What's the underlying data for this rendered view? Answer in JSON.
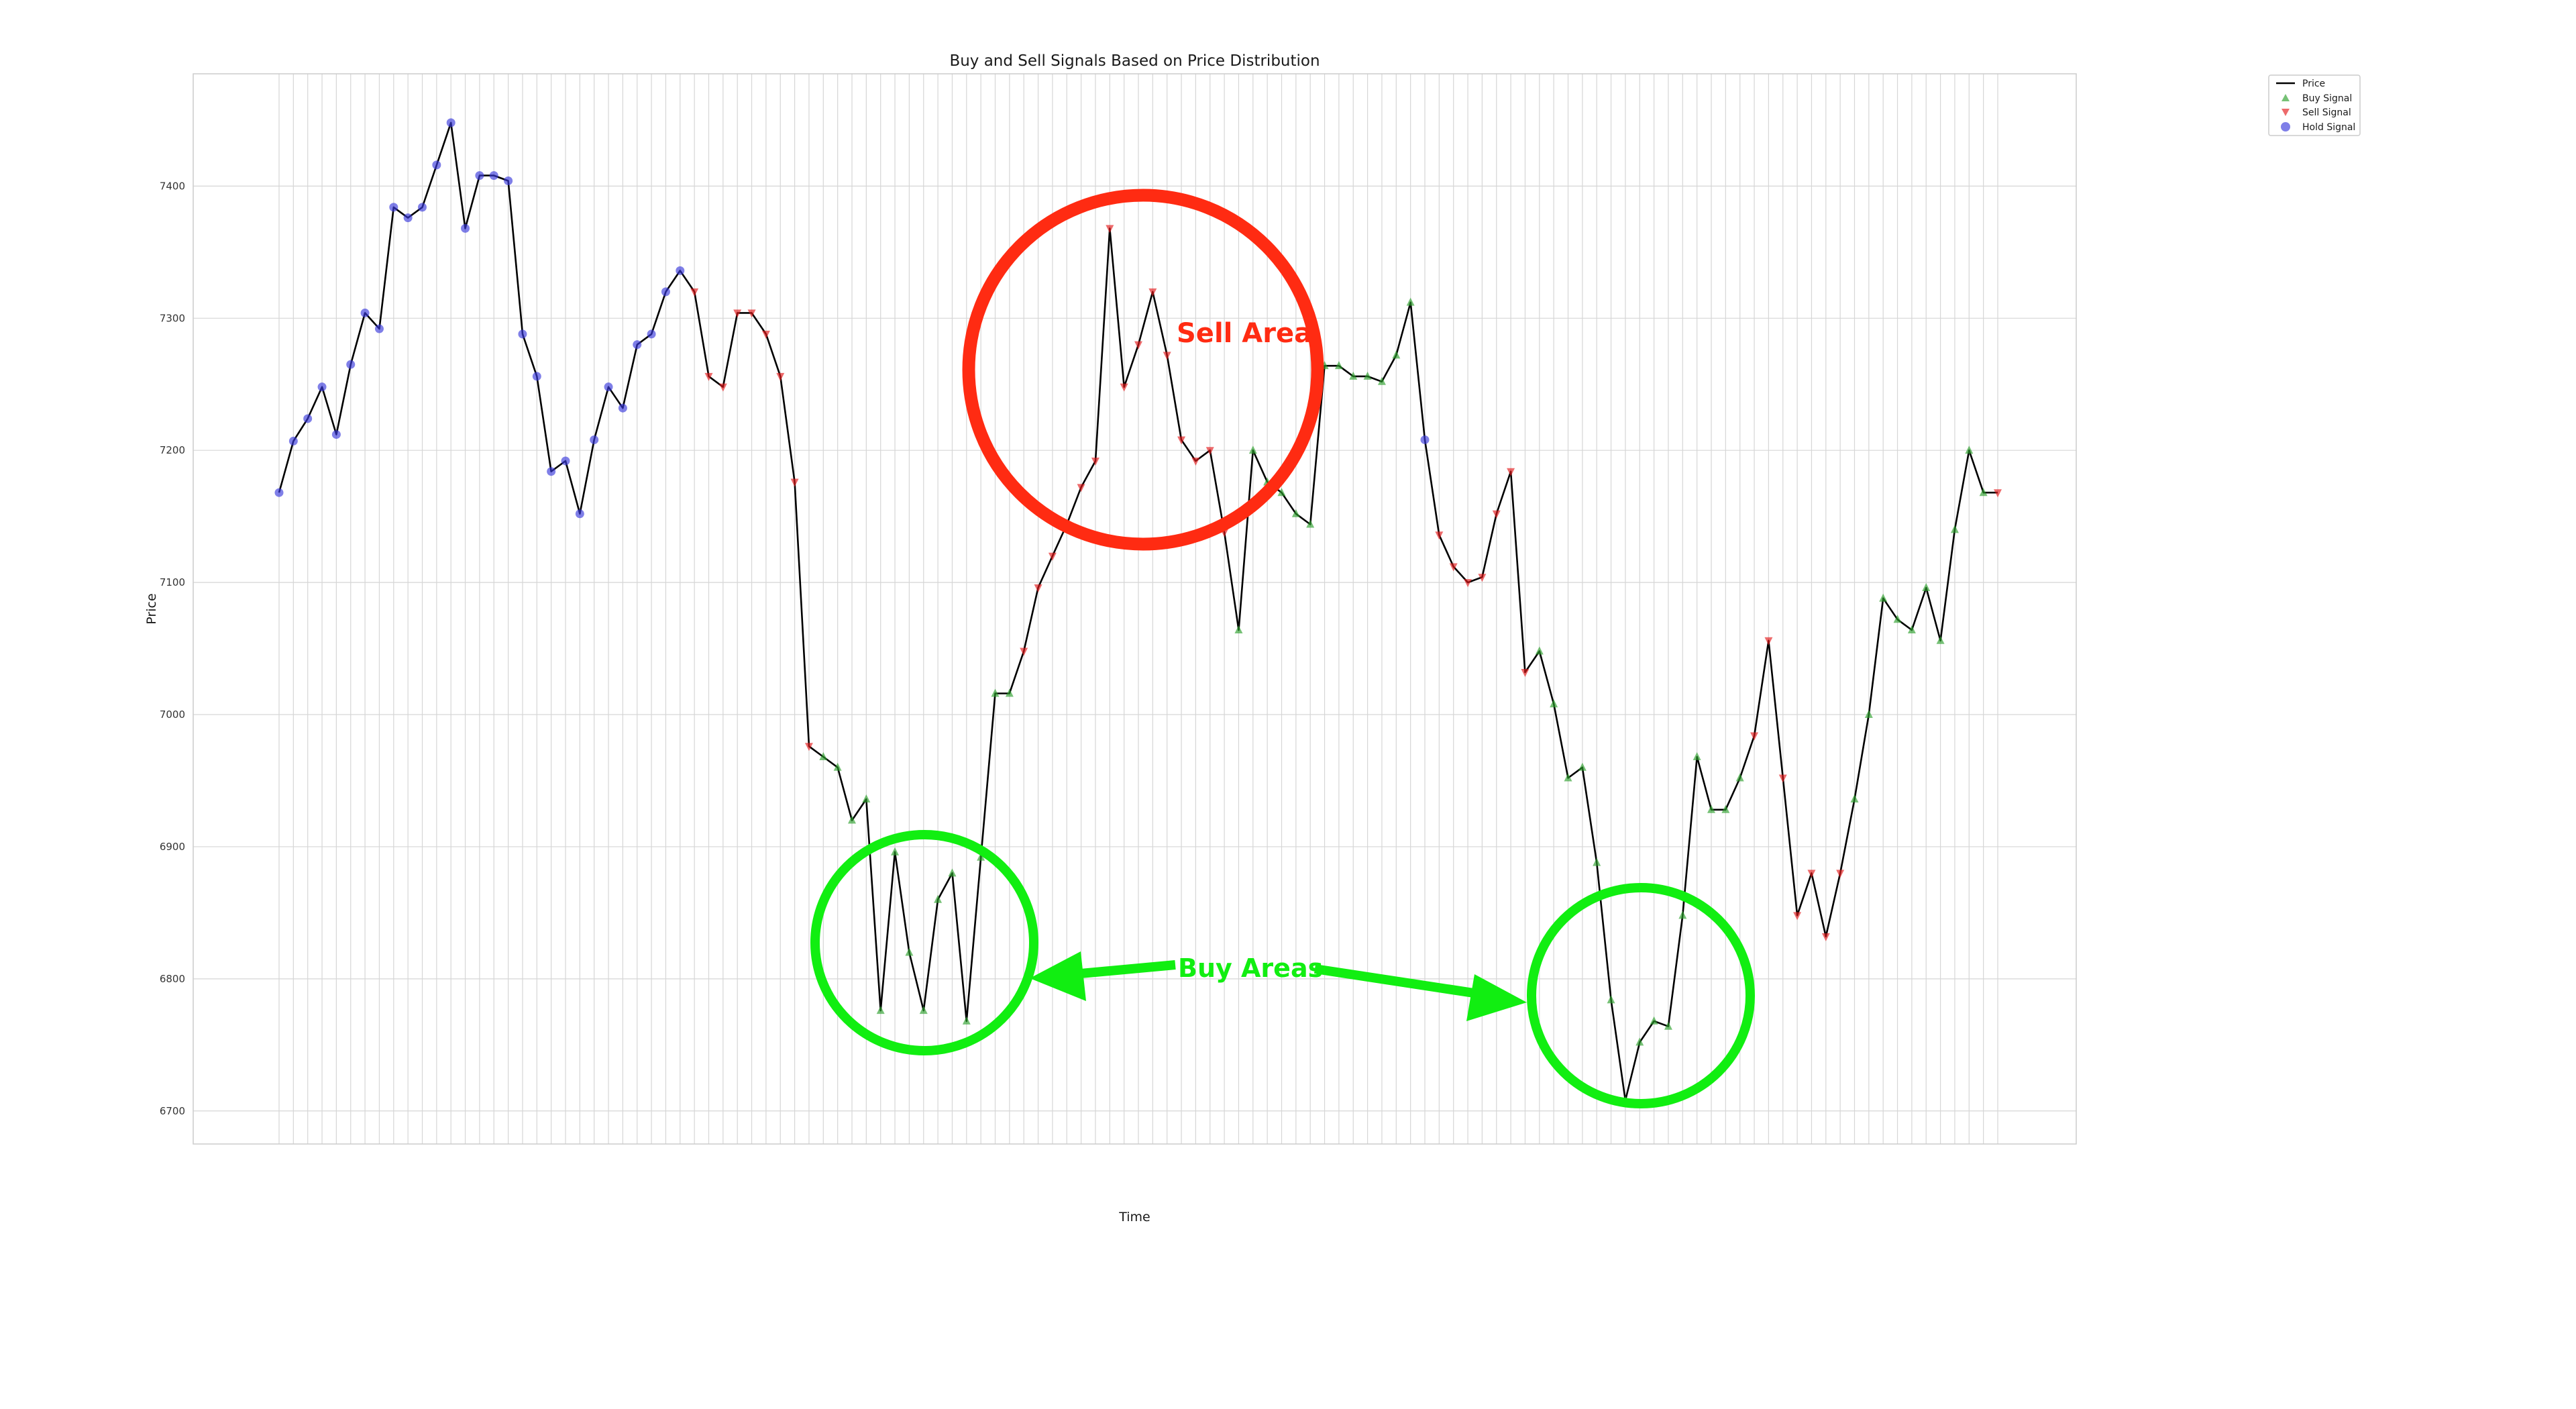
{
  "chart_data": {
    "type": "line",
    "title": "Buy and Sell Signals Based on Price Distribution",
    "xlabel": "Time",
    "ylabel": "Price",
    "ylim": [
      6675,
      7485
    ],
    "yticks": [
      6700,
      6800,
      6900,
      7000,
      7100,
      7200,
      7300,
      7400
    ],
    "grid": true,
    "legend_position": "top-right, outside plot",
    "x_tick_labels": [],
    "series": [
      {
        "name": "Price",
        "color": "#000000",
        "values": [
          7168,
          7207,
          7224,
          7248,
          7212,
          7265,
          7304,
          7292,
          7384,
          7376,
          7384,
          7416,
          7448,
          7368,
          7408,
          7408,
          7404,
          7288,
          7256,
          7184,
          7192,
          7152,
          7208,
          7248,
          7232,
          7280,
          7288,
          7320,
          7336,
          7320,
          7256,
          7248,
          7304,
          7304,
          7288,
          7256,
          7176,
          6976,
          6968,
          6960,
          6920,
          6936,
          6776,
          6896,
          6820,
          6776,
          6860,
          6880,
          6768,
          6892,
          7016,
          7016,
          7048,
          7096,
          7120,
          7144,
          7172,
          7192,
          7368,
          7248,
          7280,
          7320,
          7272,
          7208,
          7192,
          7200,
          7138,
          7064,
          7200,
          7176,
          7168,
          7152,
          7144,
          7264,
          7264,
          7256,
          7256,
          7252,
          7272,
          7312,
          7208,
          7136,
          7112,
          7100,
          7104,
          7152,
          7184,
          7032,
          7048,
          7008,
          6952,
          6960,
          6888,
          6784,
          6708,
          6752,
          6768,
          6764,
          6848,
          6968,
          6928,
          6928,
          6952,
          6984,
          7056,
          6952,
          6848,
          6880,
          6832,
          6880,
          6936,
          7000,
          7088,
          7072,
          7064,
          7096,
          7056,
          7140,
          7200,
          7168,
          7168
        ]
      }
    ],
    "signals": [
      "hold",
      "hold",
      "hold",
      "hold",
      "hold",
      "hold",
      "hold",
      "hold",
      "hold",
      "hold",
      "hold",
      "hold",
      "hold",
      "hold",
      "hold",
      "hold",
      "hold",
      "hold",
      "hold",
      "hold",
      "hold",
      "hold",
      "hold",
      "hold",
      "hold",
      "hold",
      "hold",
      "hold",
      "hold",
      "sell",
      "sell",
      "sell",
      "sell",
      "sell",
      "sell",
      "sell",
      "sell",
      "sell",
      "buy",
      "buy",
      "buy",
      "buy",
      "buy",
      "buy",
      "buy",
      "buy",
      "buy",
      "buy",
      "buy",
      "buy",
      "buy",
      "buy",
      "sell",
      "sell",
      "sell",
      "sell",
      "sell",
      "sell",
      "sell",
      "sell",
      "sell",
      "sell",
      "sell",
      "sell",
      "sell",
      "sell",
      "sell",
      "buy",
      "buy",
      "buy",
      "buy",
      "buy",
      "buy",
      "buy",
      "buy",
      "buy",
      "buy",
      "buy",
      "buy",
      "buy",
      "hold",
      "sell",
      "sell",
      "sell",
      "sell",
      "sell",
      "sell",
      "sell",
      "buy",
      "buy",
      "buy",
      "buy",
      "buy",
      "buy",
      "buy",
      "buy",
      "buy",
      "buy",
      "buy",
      "buy",
      "buy",
      "buy",
      "buy",
      "sell",
      "sell",
      "sell",
      "sell",
      "sell",
      "sell",
      "sell",
      "buy",
      "buy",
      "buy",
      "buy",
      "buy",
      "buy",
      "buy",
      "buy",
      "buy",
      "buy",
      "sell"
    ],
    "legend": [
      {
        "label": "Price",
        "kind": "line",
        "color": "#000000"
      },
      {
        "label": "Buy Signal",
        "kind": "triangle-up",
        "color": "#2ca02c"
      },
      {
        "label": "Sell Signal",
        "kind": "triangle-down",
        "color": "#e31a1c"
      },
      {
        "label": "Hold Signal",
        "kind": "circle",
        "color": "#3b3bdc"
      }
    ],
    "annotations": {
      "sell_area": {
        "text": "Sell Area",
        "color": "#ff2b12"
      },
      "buy_areas": {
        "text": "Buy Areas",
        "color": "#11ee11"
      }
    }
  }
}
